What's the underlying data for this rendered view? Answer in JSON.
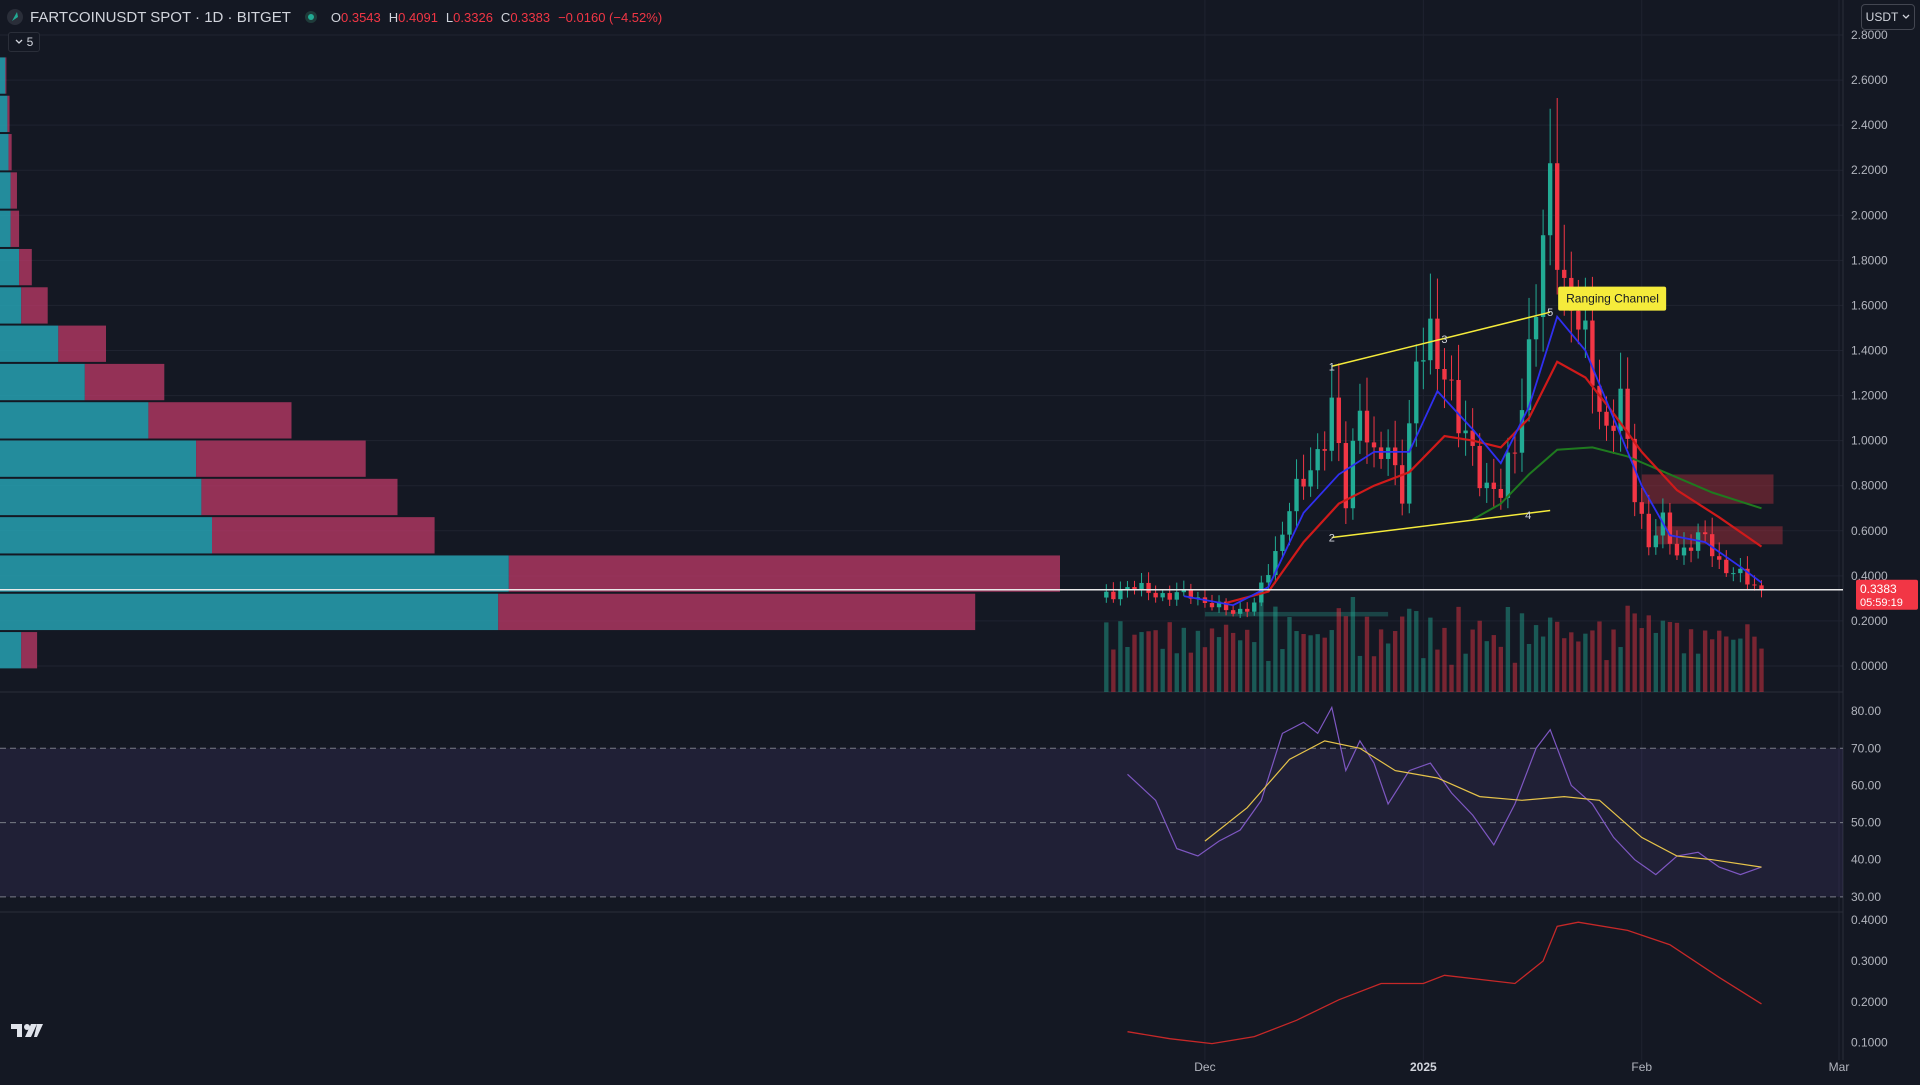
{
  "header": {
    "symbol": "FARTCOINUSDT SPOT · 1D · BITGET",
    "o_label": "O",
    "o": "0.3543",
    "h_label": "H",
    "h": "0.4091",
    "l_label": "L",
    "l": "0.3326",
    "c_label": "C",
    "c": "0.3383",
    "change": "−0.0160 (−4.52%)",
    "collapsed_count": "5",
    "currency": "USDT"
  },
  "colors": {
    "background": "#141823",
    "grid": "#1f2330",
    "up": "#22ab94",
    "down": "#f23645",
    "ema_blue": "#2f2ff0",
    "ema_red": "#d01a1a",
    "ema_green": "#1f7a1f",
    "rsi_line": "#7e57c2",
    "rsi_ma": "#e6c34a",
    "atr_line": "#c62828",
    "annotation": "#f5eb3b",
    "price_label_bg": "#f23645",
    "vp_up": "#26a1b1",
    "vp_down": "#bf3a68"
  },
  "icons": {
    "logo": "tradingview-logo",
    "symbol": "coin-icon",
    "collapse": "chevron-down-icon"
  },
  "chart_data": [
    {
      "type": "candlestick",
      "pane": "price",
      "title": "FARTCOINUSDT SPOT · 1D · BITGET",
      "y_ticks": [
        "2.8000",
        "2.6000",
        "2.4000",
        "2.2000",
        "2.0000",
        "1.8000",
        "1.6000",
        "1.4000",
        "1.2000",
        "1.0000",
        "0.8000",
        "0.6000",
        "0.4000",
        "0.2000",
        "0.0000"
      ],
      "ylim": [
        0,
        2.8
      ],
      "x_ticks": [
        "Dec",
        "2025",
        "Feb",
        "Mar"
      ],
      "x_tick_dates": [
        "2024-12-01",
        "2025-01-01",
        "2025-02-01",
        "2025-03-01"
      ],
      "xlim": [
        "2024-11-10",
        "2025-03-01"
      ],
      "close_points": [
        [
          "2024-11-17",
          0.31
        ],
        [
          "2024-11-20",
          0.35
        ],
        [
          "2024-11-23",
          0.33
        ],
        [
          "2024-11-26",
          0.31
        ],
        [
          "2024-11-29",
          0.32
        ],
        [
          "2024-12-02",
          0.27
        ],
        [
          "2024-12-05",
          0.24
        ],
        [
          "2024-12-08",
          0.27
        ],
        [
          "2024-12-11",
          0.5
        ],
        [
          "2024-12-13",
          0.72
        ],
        [
          "2024-12-15",
          0.8
        ],
        [
          "2024-12-17",
          0.95
        ],
        [
          "2024-12-19",
          1.15
        ],
        [
          "2024-12-21",
          0.72
        ],
        [
          "2024-12-23",
          1.2
        ],
        [
          "2024-12-25",
          0.9
        ],
        [
          "2024-12-27",
          0.95
        ],
        [
          "2024-12-29",
          0.8
        ],
        [
          "2024-12-31",
          1.3
        ],
        [
          "2025-01-02",
          1.45
        ],
        [
          "2025-01-04",
          1.35
        ],
        [
          "2025-01-06",
          1.05
        ],
        [
          "2025-01-08",
          0.95
        ],
        [
          "2025-01-10",
          0.8
        ],
        [
          "2025-01-12",
          0.75
        ],
        [
          "2025-01-14",
          1.0
        ],
        [
          "2025-01-16",
          1.4
        ],
        [
          "2025-01-18",
          1.8
        ],
        [
          "2025-01-19",
          2.15
        ],
        [
          "2025-01-21",
          1.7
        ],
        [
          "2025-01-23",
          1.5
        ],
        [
          "2025-01-25",
          1.3
        ],
        [
          "2025-01-27",
          1.05
        ],
        [
          "2025-01-29",
          1.15
        ],
        [
          "2025-01-31",
          0.78
        ],
        [
          "2025-02-02",
          0.55
        ],
        [
          "2025-02-04",
          0.62
        ],
        [
          "2025-02-06",
          0.5
        ],
        [
          "2025-02-08",
          0.55
        ],
        [
          "2025-02-10",
          0.56
        ],
        [
          "2025-02-12",
          0.46
        ],
        [
          "2025-02-14",
          0.42
        ],
        [
          "2025-02-16",
          0.37
        ],
        [
          "2025-02-18",
          0.34
        ]
      ],
      "ema_fast": [
        [
          "2024-11-28",
          0.31
        ],
        [
          "2024-12-05",
          0.27
        ],
        [
          "2024-12-10",
          0.35
        ],
        [
          "2024-12-15",
          0.68
        ],
        [
          "2024-12-20",
          0.85
        ],
        [
          "2024-12-25",
          0.95
        ],
        [
          "2024-12-30",
          0.95
        ],
        [
          "2025-01-03",
          1.22
        ],
        [
          "2025-01-08",
          1.05
        ],
        [
          "2025-01-12",
          0.9
        ],
        [
          "2025-01-16",
          1.15
        ],
        [
          "2025-01-20",
          1.55
        ],
        [
          "2025-01-24",
          1.4
        ],
        [
          "2025-01-28",
          1.1
        ],
        [
          "2025-02-01",
          0.8
        ],
        [
          "2025-02-05",
          0.58
        ],
        [
          "2025-02-10",
          0.55
        ],
        [
          "2025-02-15",
          0.44
        ],
        [
          "2025-02-18",
          0.37
        ]
      ],
      "ema_slow": [
        [
          "2024-12-04",
          0.28
        ],
        [
          "2024-12-10",
          0.33
        ],
        [
          "2024-12-15",
          0.55
        ],
        [
          "2024-12-20",
          0.72
        ],
        [
          "2024-12-25",
          0.8
        ],
        [
          "2024-12-30",
          0.86
        ],
        [
          "2025-01-04",
          1.02
        ],
        [
          "2025-01-08",
          1.0
        ],
        [
          "2025-01-12",
          0.97
        ],
        [
          "2025-01-16",
          1.1
        ],
        [
          "2025-01-20",
          1.35
        ],
        [
          "2025-01-24",
          1.28
        ],
        [
          "2025-01-28",
          1.12
        ],
        [
          "2025-02-01",
          0.95
        ],
        [
          "2025-02-06",
          0.78
        ],
        [
          "2025-02-12",
          0.66
        ],
        [
          "2025-02-18",
          0.53
        ]
      ],
      "ema_trend": [
        [
          "2025-01-08",
          0.65
        ],
        [
          "2025-01-12",
          0.72
        ],
        [
          "2025-01-16",
          0.85
        ],
        [
          "2025-01-20",
          0.96
        ],
        [
          "2025-01-25",
          0.97
        ],
        [
          "2025-01-30",
          0.93
        ],
        [
          "2025-02-05",
          0.85
        ],
        [
          "2025-02-11",
          0.77
        ],
        [
          "2025-02-18",
          0.7
        ]
      ],
      "volume_profile": {
        "buckets": [
          {
            "price": 2.62,
            "up": 0.005,
            "down": 0.001
          },
          {
            "price": 2.45,
            "up": 0.007,
            "down": 0.002
          },
          {
            "price": 2.28,
            "up": 0.008,
            "down": 0.003
          },
          {
            "price": 2.11,
            "up": 0.01,
            "down": 0.006
          },
          {
            "price": 1.94,
            "up": 0.01,
            "down": 0.008
          },
          {
            "price": 1.77,
            "up": 0.018,
            "down": 0.012
          },
          {
            "price": 1.6,
            "up": 0.02,
            "down": 0.025
          },
          {
            "price": 1.43,
            "up": 0.055,
            "down": 0.045
          },
          {
            "price": 1.26,
            "up": 0.08,
            "down": 0.075
          },
          {
            "price": 1.09,
            "up": 0.14,
            "down": 0.135
          },
          {
            "price": 0.92,
            "up": 0.185,
            "down": 0.16
          },
          {
            "price": 0.75,
            "up": 0.19,
            "down": 0.185
          },
          {
            "price": 0.58,
            "up": 0.2,
            "down": 0.21
          },
          {
            "price": 0.41,
            "up": 0.48,
            "down": 0.52
          },
          {
            "price": 0.24,
            "up": 0.47,
            "down": 0.45
          },
          {
            "price": 0.07,
            "up": 0.02,
            "down": 0.015
          }
        ]
      },
      "annotations": {
        "label": "Ranging Channel",
        "wave_labels": [
          "1",
          "2",
          "3",
          "4",
          "5"
        ],
        "upper_line": [
          [
            "2024-12-19",
            1.33
          ],
          [
            "2025-01-19",
            1.57
          ]
        ],
        "lower_line": [
          [
            "2024-12-19",
            0.57
          ],
          [
            "2025-01-19",
            0.69
          ]
        ],
        "resistance_zones": [
          [
            0.72,
            0.85
          ],
          [
            0.54,
            0.62
          ]
        ],
        "support_zone": [
          0.22,
          0.24
        ]
      },
      "last_price": "0.3383",
      "countdown": "05:59:19"
    },
    {
      "type": "line",
      "pane": "rsi",
      "y_ticks": [
        "80.00",
        "70.00",
        "60.00",
        "50.00",
        "40.00",
        "30.00"
      ],
      "ylim": [
        27,
        83
      ],
      "band": [
        30,
        70
      ],
      "series": [
        {
          "role": "rsi",
          "values": [
            [
              "2024-11-20",
              63
            ],
            [
              "2024-11-24",
              56
            ],
            [
              "2024-11-27",
              43
            ],
            [
              "2024-11-30",
              41
            ],
            [
              "2024-12-03",
              45
            ],
            [
              "2024-12-06",
              48
            ],
            [
              "2024-12-09",
              56
            ],
            [
              "2024-12-12",
              74
            ],
            [
              "2024-12-15",
              77
            ],
            [
              "2024-12-17",
              74
            ],
            [
              "2024-12-19",
              81
            ],
            [
              "2024-12-21",
              64
            ],
            [
              "2024-12-23",
              72
            ],
            [
              "2024-12-25",
              66
            ],
            [
              "2024-12-27",
              55
            ],
            [
              "2024-12-30",
              64
            ],
            [
              "2025-01-02",
              66
            ],
            [
              "2025-01-05",
              58
            ],
            [
              "2025-01-08",
              52
            ],
            [
              "2025-01-11",
              44
            ],
            [
              "2025-01-14",
              55
            ],
            [
              "2025-01-17",
              70
            ],
            [
              "2025-01-19",
              75
            ],
            [
              "2025-01-22",
              60
            ],
            [
              "2025-01-25",
              55
            ],
            [
              "2025-01-28",
              46
            ],
            [
              "2025-01-31",
              40
            ],
            [
              "2025-02-03",
              36
            ],
            [
              "2025-02-06",
              41
            ],
            [
              "2025-02-09",
              42
            ],
            [
              "2025-02-12",
              38
            ],
            [
              "2025-02-15",
              36
            ],
            [
              "2025-02-18",
              38
            ]
          ]
        },
        {
          "role": "ma",
          "values": [
            [
              "2024-12-01",
              45
            ],
            [
              "2024-12-07",
              54
            ],
            [
              "2024-12-13",
              67
            ],
            [
              "2024-12-18",
              72
            ],
            [
              "2024-12-23",
              70
            ],
            [
              "2024-12-28",
              64
            ],
            [
              "2025-01-03",
              62
            ],
            [
              "2025-01-09",
              57
            ],
            [
              "2025-01-15",
              56
            ],
            [
              "2025-01-21",
              57
            ],
            [
              "2025-01-26",
              56
            ],
            [
              "2025-02-01",
              46
            ],
            [
              "2025-02-06",
              41
            ],
            [
              "2025-02-11",
              40
            ],
            [
              "2025-02-18",
              38
            ]
          ]
        }
      ]
    },
    {
      "type": "line",
      "pane": "atr",
      "y_ticks": [
        "0.4000",
        "0.3000",
        "0.2000",
        "0.1000"
      ],
      "ylim": [
        0.07,
        0.42
      ],
      "series": [
        {
          "role": "atr",
          "values": [
            [
              "2024-11-20",
              0.127
            ],
            [
              "2024-11-26",
              0.11
            ],
            [
              "2024-12-02",
              0.098
            ],
            [
              "2024-12-08",
              0.115
            ],
            [
              "2024-12-14",
              0.155
            ],
            [
              "2024-12-20",
              0.205
            ],
            [
              "2024-12-26",
              0.245
            ],
            [
              "2025-01-01",
              0.245
            ],
            [
              "2025-01-04",
              0.265
            ],
            [
              "2025-01-09",
              0.255
            ],
            [
              "2025-01-14",
              0.245
            ],
            [
              "2025-01-18",
              0.3
            ],
            [
              "2025-01-20",
              0.385
            ],
            [
              "2025-01-23",
              0.395
            ],
            [
              "2025-01-30",
              0.375
            ],
            [
              "2025-02-05",
              0.34
            ],
            [
              "2025-02-12",
              0.26
            ],
            [
              "2025-02-18",
              0.195
            ]
          ]
        }
      ]
    }
  ]
}
